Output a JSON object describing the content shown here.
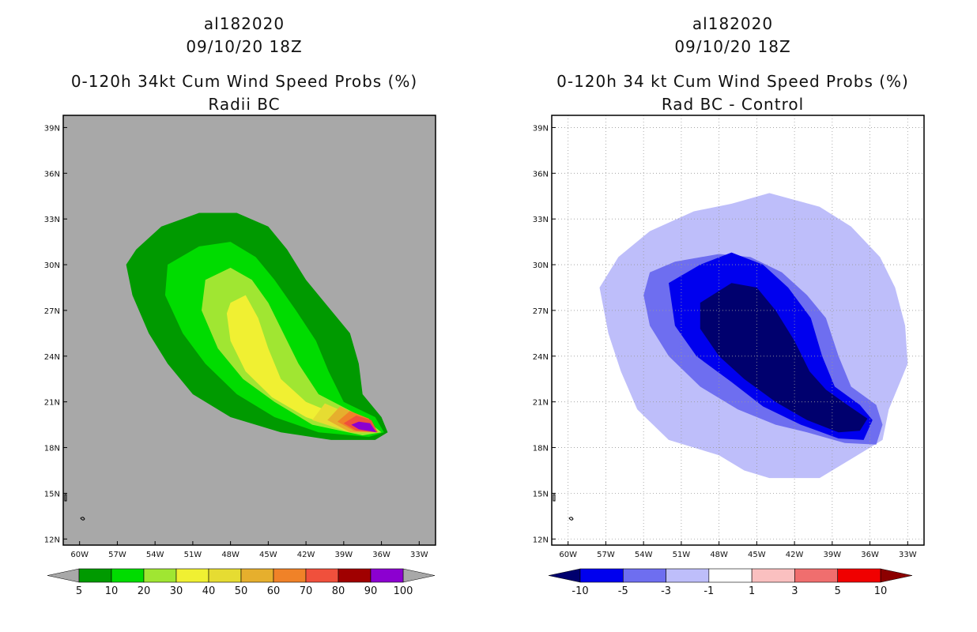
{
  "panels": [
    {
      "storm_id": "al182020",
      "datetime": "09/10/20 18Z",
      "title": "0-120h 34kt Cum Wind Speed Probs (%)",
      "subtitle": "Radii BC",
      "background": "#a8a8a8",
      "legend_labels": [
        "5",
        "10",
        "20",
        "30",
        "40",
        "50",
        "60",
        "70",
        "80",
        "90",
        "100"
      ],
      "legend_colors": [
        "#009a00",
        "#00dc00",
        "#a0e632",
        "#f0f032",
        "#e6dc32",
        "#e6af2d",
        "#f08228",
        "#f0503c",
        "#a00000",
        "#8c00d0"
      ],
      "legend_under": "#a8a8a8",
      "legend_over": "#a8a8a8"
    },
    {
      "storm_id": "al182020",
      "datetime": "09/10/20 18Z",
      "title": "0-120h 34 kt Cum Wind Speed Probs (%)",
      "subtitle": "Rad BC - Control",
      "background": "#ffffff",
      "legend_labels": [
        "-10",
        "-5",
        "-3",
        "-1",
        "1",
        "3",
        "5",
        "10"
      ],
      "legend_colors": [
        "#0000ee",
        "#6e6ef0",
        "#bebefa",
        "#ffffff",
        "#fac0c0",
        "#f06e6e",
        "#f00000"
      ],
      "legend_under": "#00006e",
      "legend_over": "#8c0000"
    }
  ],
  "chart_data": [
    {
      "type": "heatmap",
      "title": "0-120h 34kt Cum Wind Speed Probs (%)",
      "subtitle": "Radii BC",
      "xlabel": "",
      "ylabel": "",
      "x_ticks": [
        "60W",
        "57W",
        "54W",
        "51W",
        "48W",
        "45W",
        "42W",
        "39W",
        "36W",
        "33W"
      ],
      "y_ticks": [
        "12N",
        "15N",
        "18N",
        "21N",
        "24N",
        "27N",
        "30N",
        "33N",
        "36N",
        "39N"
      ],
      "xlim_lon": [
        -61.3,
        -31.7
      ],
      "ylim_lat": [
        11.6,
        39.8
      ],
      "grid": false,
      "contour_levels": [
        5,
        10,
        20,
        30,
        40,
        50,
        60,
        70,
        80,
        90,
        100
      ],
      "features": [
        {
          "level": 5,
          "color": "#009a00",
          "lonlat": [
            [
              -55.5,
              31.0
            ],
            [
              -53.5,
              32.5
            ],
            [
              -50.5,
              33.4
            ],
            [
              -47.5,
              33.4
            ],
            [
              -45.0,
              32.5
            ],
            [
              -43.5,
              31.0
            ],
            [
              -42.0,
              29.0
            ],
            [
              -40.0,
              27.0
            ],
            [
              -38.5,
              25.5
            ],
            [
              -37.8,
              23.5
            ],
            [
              -37.5,
              21.5
            ],
            [
              -36.0,
              20.0
            ],
            [
              -35.5,
              19.0
            ],
            [
              -36.5,
              18.5
            ],
            [
              -40.0,
              18.5
            ],
            [
              -44.0,
              19.0
            ],
            [
              -48.0,
              20.0
            ],
            [
              -51.0,
              21.5
            ],
            [
              -53.0,
              23.5
            ],
            [
              -54.5,
              25.5
            ],
            [
              -55.8,
              28.0
            ],
            [
              -56.3,
              30.0
            ]
          ]
        },
        {
          "level": 10,
          "color": "#00dc00",
          "lonlat": [
            [
              -53.0,
              30.0
            ],
            [
              -50.5,
              31.2
            ],
            [
              -48.0,
              31.5
            ],
            [
              -46.0,
              30.5
            ],
            [
              -44.5,
              29.0
            ],
            [
              -42.8,
              27.0
            ],
            [
              -41.2,
              25.0
            ],
            [
              -40.2,
              23.0
            ],
            [
              -39.0,
              21.0
            ],
            [
              -36.5,
              20.0
            ],
            [
              -35.8,
              19.0
            ],
            [
              -37.0,
              18.7
            ],
            [
              -41.0,
              19.0
            ],
            [
              -44.5,
              20.0
            ],
            [
              -47.5,
              21.5
            ],
            [
              -50.0,
              23.5
            ],
            [
              -51.8,
              25.5
            ],
            [
              -53.2,
              28.0
            ]
          ]
        },
        {
          "level": 20,
          "color": "#a0e632",
          "lonlat": [
            [
              -50.0,
              29.0
            ],
            [
              -48.0,
              29.8
            ],
            [
              -46.3,
              29.0
            ],
            [
              -45.0,
              27.5
            ],
            [
              -43.8,
              25.5
            ],
            [
              -42.6,
              23.5
            ],
            [
              -41.0,
              21.5
            ],
            [
              -37.5,
              20.0
            ],
            [
              -36.0,
              19.0
            ],
            [
              -37.5,
              18.8
            ],
            [
              -41.5,
              19.5
            ],
            [
              -44.5,
              21.0
            ],
            [
              -47.0,
              22.5
            ],
            [
              -49.0,
              24.5
            ],
            [
              -50.3,
              27.0
            ]
          ]
        },
        {
          "level": 30,
          "color": "#f0f032",
          "lonlat": [
            [
              -48.0,
              27.5
            ],
            [
              -46.8,
              28.0
            ],
            [
              -45.8,
              26.5
            ],
            [
              -45.0,
              24.5
            ],
            [
              -44.0,
              22.5
            ],
            [
              -42.0,
              21.0
            ],
            [
              -38.5,
              19.8
            ],
            [
              -36.3,
              19.0
            ],
            [
              -38.5,
              19.0
            ],
            [
              -42.0,
              20.0
            ],
            [
              -44.7,
              21.3
            ],
            [
              -46.8,
              23.0
            ],
            [
              -48.0,
              25.0
            ],
            [
              -48.3,
              26.8
            ]
          ]
        },
        {
          "level": 40,
          "color": "#e6dc32",
          "lonlat": [
            [
              -40.5,
              20.9
            ],
            [
              -38.0,
              20.0
            ],
            [
              -36.3,
              19.0
            ],
            [
              -38.5,
              19.0
            ],
            [
              -41.5,
              19.8
            ]
          ]
        },
        {
          "level": 50,
          "color": "#e6af2d",
          "lonlat": [
            [
              -39.3,
              20.7
            ],
            [
              -37.5,
              20.0
            ],
            [
              -36.3,
              19.0
            ],
            [
              -38.5,
              19.0
            ],
            [
              -40.3,
              19.8
            ]
          ]
        },
        {
          "level": 60,
          "color": "#f08228",
          "lonlat": [
            [
              -38.5,
              20.4
            ],
            [
              -37.0,
              19.9
            ],
            [
              -36.3,
              19.0
            ],
            [
              -38.2,
              19.1
            ],
            [
              -39.5,
              19.7
            ]
          ]
        },
        {
          "level": 70,
          "color": "#f0503c",
          "lonlat": [
            [
              -38.0,
              20.1
            ],
            [
              -36.8,
              19.8
            ],
            [
              -36.3,
              19.0
            ],
            [
              -38.0,
              19.1
            ],
            [
              -39.0,
              19.6
            ]
          ]
        },
        {
          "level": 90,
          "color": "#8c00d0",
          "lonlat": [
            [
              -37.8,
              19.7
            ],
            [
              -36.9,
              19.6
            ],
            [
              -36.4,
              19.0
            ],
            [
              -37.8,
              19.2
            ],
            [
              -38.4,
              19.5
            ]
          ]
        }
      ]
    },
    {
      "type": "heatmap",
      "title": "0-120h 34 kt Cum Wind Speed Probs (%)",
      "subtitle": "Rad BC - Control",
      "xlabel": "",
      "ylabel": "",
      "x_ticks": [
        "60W",
        "57W",
        "54W",
        "51W",
        "48W",
        "45W",
        "42W",
        "39W",
        "36W",
        "33W"
      ],
      "y_ticks": [
        "12N",
        "15N",
        "18N",
        "21N",
        "24N",
        "27N",
        "30N",
        "33N",
        "36N",
        "39N"
      ],
      "xlim_lon": [
        -61.3,
        -31.7
      ],
      "ylim_lat": [
        11.6,
        39.8
      ],
      "grid": true,
      "contour_levels": [
        -10,
        -5,
        -3,
        -1,
        1,
        3,
        5,
        10
      ],
      "features": [
        {
          "level": -1,
          "color": "#bebefa",
          "lonlat": [
            [
              -56.0,
              30.5
            ],
            [
              -53.5,
              32.2
            ],
            [
              -50.0,
              33.5
            ],
            [
              -47.0,
              34.0
            ],
            [
              -44.0,
              34.7
            ],
            [
              -40.0,
              33.8
            ],
            [
              -37.5,
              32.5
            ],
            [
              -35.2,
              30.5
            ],
            [
              -34.0,
              28.5
            ],
            [
              -33.2,
              26.0
            ],
            [
              -33.0,
              23.5
            ],
            [
              -34.5,
              20.5
            ],
            [
              -35.0,
              18.5
            ],
            [
              -37.0,
              17.5
            ],
            [
              -40.0,
              16.0
            ],
            [
              -44.0,
              16.0
            ],
            [
              -46.0,
              16.5
            ],
            [
              -48.0,
              17.5
            ],
            [
              -52.0,
              18.5
            ],
            [
              -54.5,
              20.5
            ],
            [
              -55.8,
              23.0
            ],
            [
              -56.8,
              25.5
            ],
            [
              -57.5,
              28.5
            ]
          ]
        },
        {
          "level": -3,
          "color": "#6e6ef0",
          "lonlat": [
            [
              -53.5,
              29.5
            ],
            [
              -51.5,
              30.2
            ],
            [
              -48.0,
              30.7
            ],
            [
              -45.5,
              30.5
            ],
            [
              -43.0,
              29.5
            ],
            [
              -41.0,
              28.0
            ],
            [
              -39.5,
              26.5
            ],
            [
              -38.5,
              24.0
            ],
            [
              -37.5,
              22.0
            ],
            [
              -35.5,
              20.8
            ],
            [
              -35.0,
              19.5
            ],
            [
              -35.5,
              18.2
            ],
            [
              -38.0,
              18.3
            ],
            [
              -41.0,
              19.0
            ],
            [
              -43.5,
              19.5
            ],
            [
              -46.5,
              20.5
            ],
            [
              -49.5,
              22.0
            ],
            [
              -52.0,
              24.0
            ],
            [
              -53.5,
              26.0
            ],
            [
              -54.0,
              28.0
            ]
          ]
        },
        {
          "level": -5,
          "color": "#0000ee",
          "lonlat": [
            [
              -52.0,
              28.8
            ],
            [
              -49.5,
              30.0
            ],
            [
              -47.0,
              30.8
            ],
            [
              -44.5,
              30.0
            ],
            [
              -42.5,
              28.5
            ],
            [
              -40.7,
              26.5
            ],
            [
              -39.8,
              24.0
            ],
            [
              -38.8,
              22.0
            ],
            [
              -36.8,
              20.8
            ],
            [
              -35.8,
              19.8
            ],
            [
              -36.5,
              18.5
            ],
            [
              -38.5,
              18.6
            ],
            [
              -41.5,
              19.5
            ],
            [
              -44.5,
              20.7
            ],
            [
              -47.0,
              22.3
            ],
            [
              -49.8,
              24.0
            ],
            [
              -51.5,
              26.0
            ]
          ]
        },
        {
          "level": -10,
          "color": "#00006e",
          "lonlat": [
            [
              -49.5,
              27.5
            ],
            [
              -47.0,
              28.8
            ],
            [
              -45.0,
              28.5
            ],
            [
              -43.5,
              27.0
            ],
            [
              -42.0,
              25.0
            ],
            [
              -40.8,
              23.0
            ],
            [
              -39.5,
              21.8
            ],
            [
              -37.8,
              20.8
            ],
            [
              -36.2,
              19.9
            ],
            [
              -36.8,
              19.1
            ],
            [
              -38.5,
              19.0
            ],
            [
              -41.0,
              19.8
            ],
            [
              -43.5,
              21.0
            ],
            [
              -46.0,
              22.5
            ],
            [
              -48.0,
              24.0
            ],
            [
              -49.5,
              25.8
            ]
          ]
        }
      ]
    }
  ]
}
